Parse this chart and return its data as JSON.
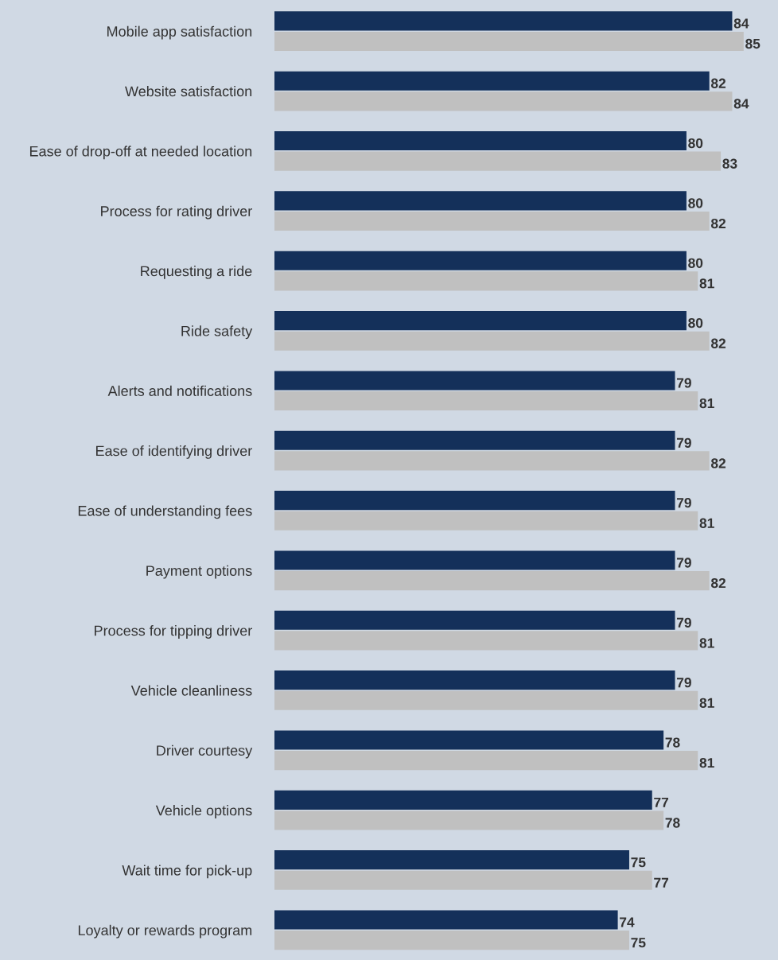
{
  "chart_data": {
    "type": "bar",
    "orientation": "horizontal",
    "categories": [
      "Mobile app satisfaction",
      "Website satisfaction",
      "Ease of drop-off at needed location",
      "Process for rating driver",
      "Requesting a ride",
      "Ride safety",
      "Alerts and notifications",
      "Ease of identifying driver",
      "Ease of understanding fees",
      "Payment options",
      "Process for tipping driver",
      "Vehicle cleanliness",
      "Driver courtesy",
      "Vehicle options",
      "Wait time for pick-up",
      "Loyalty or rewards program"
    ],
    "series": [
      {
        "color": "#14305a",
        "values": [
          84,
          82,
          80,
          80,
          80,
          80,
          79,
          79,
          79,
          79,
          79,
          79,
          78,
          77,
          75,
          74
        ]
      },
      {
        "color": "#c0c0c0",
        "values": [
          85,
          84,
          83,
          82,
          81,
          82,
          81,
          82,
          81,
          82,
          81,
          81,
          81,
          78,
          77,
          75
        ]
      }
    ],
    "xlim": [
      44,
      88
    ],
    "data_labels": true,
    "tick_labels": "y",
    "grid": false,
    "legend": false
  }
}
